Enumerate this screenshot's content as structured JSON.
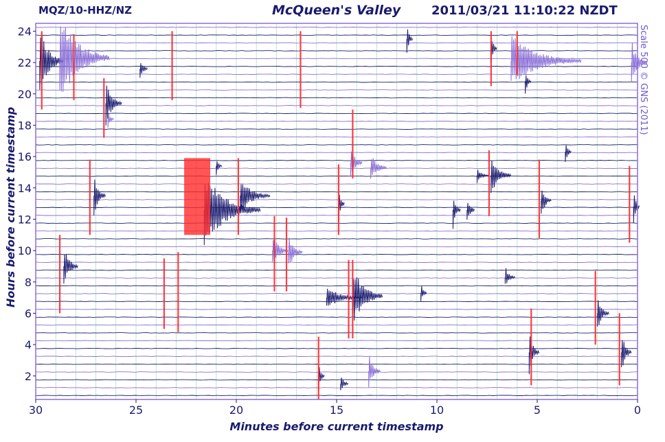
{
  "header": {
    "station": "MQZ/10-HHZ/NZ",
    "site": "McQueen's Valley",
    "timestamp": "2011/03/21 11:10:22 NZDT",
    "credit": "Scale 500 © GNS (2011)"
  },
  "chart_data": {
    "type": "heatmap",
    "xlabel": "Minutes before current timestamp",
    "ylabel": "Hours before current timestamp",
    "xlim": [
      30,
      0
    ],
    "ylim": [
      0.5,
      24.5
    ],
    "x_ticks": [
      "30",
      "25",
      "20",
      "15",
      "10",
      "5",
      "0"
    ],
    "y_ticks": [
      "2",
      "4",
      "6",
      "8",
      "10",
      "12",
      "14",
      "16",
      "18",
      "20",
      "22",
      "24"
    ],
    "trace_count": 48,
    "trace_colors": [
      "#1a1a6e",
      "#8a6fd6"
    ],
    "trigger_color": "#ff2a2a",
    "grid": true,
    "events": [
      {
        "minute": 29.8,
        "hour": 22.1,
        "amp": 4.5,
        "decay": 1.2,
        "color": "#1a1a6e"
      },
      {
        "minute": 28.8,
        "hour": 22.3,
        "amp": 6.0,
        "decay": 2.5,
        "color": "#8a6fd6"
      },
      {
        "minute": 26.5,
        "hour": 19.4,
        "amp": 3.0,
        "decay": 0.8,
        "color": "#1a1a6e"
      },
      {
        "minute": 24.8,
        "hour": 21.6,
        "amp": 1.5,
        "decay": 0.4,
        "color": "#1a1a6e"
      },
      {
        "minute": 21.6,
        "hour": 12.6,
        "amp": 5.0,
        "decay": 2.8,
        "color": "#1a1a6e"
      },
      {
        "minute": 19.8,
        "hour": 13.5,
        "amp": 2.5,
        "decay": 1.5,
        "color": "#1a1a6e"
      },
      {
        "minute": 27.1,
        "hour": 13.5,
        "amp": 3.0,
        "decay": 0.6,
        "color": "#1a1a6e"
      },
      {
        "minute": 28.6,
        "hour": 9.0,
        "amp": 3.0,
        "decay": 0.7,
        "color": "#1a1a6e"
      },
      {
        "minute": 18.2,
        "hour": 10.0,
        "amp": 2.5,
        "decay": 0.8,
        "color": "#8a6fd6"
      },
      {
        "minute": 17.4,
        "hour": 9.9,
        "amp": 2.5,
        "decay": 0.7,
        "color": "#8a6fd6"
      },
      {
        "minute": 15.5,
        "hour": 7.0,
        "amp": 1.5,
        "decay": 1.8,
        "color": "#1a1a6e"
      },
      {
        "minute": 14.2,
        "hour": 7.1,
        "amp": 4.0,
        "decay": 1.5,
        "color": "#1a1a6e"
      },
      {
        "minute": 14.3,
        "hour": 15.6,
        "amp": 2.5,
        "decay": 0.6,
        "color": "#8a6fd6"
      },
      {
        "minute": 13.3,
        "hour": 15.3,
        "amp": 2.0,
        "decay": 0.8,
        "color": "#8a6fd6"
      },
      {
        "minute": 14.9,
        "hour": 13.0,
        "amp": 2.5,
        "decay": 0.3,
        "color": "#1a1a6e"
      },
      {
        "minute": 15.9,
        "hour": 2.0,
        "amp": 2.0,
        "decay": 0.3,
        "color": "#1a1a6e"
      },
      {
        "minute": 14.8,
        "hour": 1.5,
        "amp": 1.5,
        "decay": 0.4,
        "color": "#1a1a6e"
      },
      {
        "minute": 13.4,
        "hour": 2.3,
        "amp": 2.5,
        "decay": 0.6,
        "color": "#8a6fd6"
      },
      {
        "minute": 7.3,
        "hour": 14.8,
        "amp": 2.5,
        "decay": 1.0,
        "color": "#1a1a6e"
      },
      {
        "minute": 8.0,
        "hour": 14.8,
        "amp": 1.0,
        "decay": 0.6,
        "color": "#1a1a6e"
      },
      {
        "minute": 9.2,
        "hour": 12.6,
        "amp": 2.5,
        "decay": 0.4,
        "color": "#1a1a6e"
      },
      {
        "minute": 8.5,
        "hour": 12.6,
        "amp": 2.0,
        "decay": 0.4,
        "color": "#1a1a6e"
      },
      {
        "minute": 4.8,
        "hour": 13.2,
        "amp": 2.5,
        "decay": 0.5,
        "color": "#1a1a6e"
      },
      {
        "minute": 0.2,
        "hour": 12.8,
        "amp": 3.0,
        "decay": 0.3,
        "color": "#1a1a6e"
      },
      {
        "minute": 5.4,
        "hour": 3.5,
        "amp": 3.0,
        "decay": 0.5,
        "color": "#1a1a6e"
      },
      {
        "minute": 2.0,
        "hour": 6.0,
        "amp": 2.5,
        "decay": 0.6,
        "color": "#1a1a6e"
      },
      {
        "minute": 0.8,
        "hour": 3.5,
        "amp": 3.0,
        "decay": 0.5,
        "color": "#1a1a6e"
      },
      {
        "minute": 6.3,
        "hour": 22.1,
        "amp": 3.5,
        "decay": 3.5,
        "color": "#8a6fd6"
      },
      {
        "minute": 0.3,
        "hour": 22.0,
        "amp": 3.0,
        "decay": 0.8,
        "color": "#8a6fd6"
      },
      {
        "minute": 7.3,
        "hour": 22.9,
        "amp": 2.0,
        "decay": 0.3,
        "color": "#1a1a6e"
      },
      {
        "minute": 11.5,
        "hour": 23.5,
        "amp": 2.0,
        "decay": 0.3,
        "color": "#1a1a6e"
      },
      {
        "minute": 5.6,
        "hour": 20.8,
        "amp": 1.8,
        "decay": 0.3,
        "color": "#1a1a6e"
      },
      {
        "minute": 3.6,
        "hour": 16.3,
        "amp": 2.0,
        "decay": 0.3,
        "color": "#1a1a6e"
      },
      {
        "minute": 6.6,
        "hour": 8.3,
        "amp": 1.5,
        "decay": 0.5,
        "color": "#1a1a6e"
      },
      {
        "minute": 26.4,
        "hour": 18.4,
        "amp": 1.2,
        "decay": 0.3,
        "color": "#8a6fd6"
      },
      {
        "minute": 21.0,
        "hour": 15.4,
        "amp": 1.2,
        "decay": 0.3,
        "color": "#1a1a6e"
      },
      {
        "minute": 10.8,
        "hour": 7.3,
        "amp": 1.5,
        "decay": 0.3,
        "color": "#1a1a6e"
      }
    ],
    "triggers": [
      {
        "minute": 29.7,
        "hour_from": 19.0,
        "hour_to": 24.0
      },
      {
        "minute": 28.1,
        "hour_from": 19.6,
        "hour_to": 23.8
      },
      {
        "minute": 26.6,
        "hour_from": 17.2,
        "hour_to": 21.0
      },
      {
        "minute": 23.2,
        "hour_from": 19.6,
        "hour_to": 24.0
      },
      {
        "minute": 16.8,
        "hour_from": 19.1,
        "hour_to": 24.0
      },
      {
        "minute": 7.3,
        "hour_from": 20.5,
        "hour_to": 24.0
      },
      {
        "minute": 6.0,
        "hour_from": 21.2,
        "hour_to": 24.0
      },
      {
        "minute": 27.3,
        "hour_from": 11.0,
        "hour_to": 15.8
      },
      {
        "minute": 19.9,
        "hour_from": 11.0,
        "hour_to": 15.9
      },
      {
        "minute": 28.8,
        "hour_from": 6.0,
        "hour_to": 11.0
      },
      {
        "minute": 23.6,
        "hour_from": 5.0,
        "hour_to": 9.5
      },
      {
        "minute": 22.9,
        "hour_from": 4.8,
        "hour_to": 9.9
      },
      {
        "minute": 18.1,
        "hour_from": 7.4,
        "hour_to": 12.2
      },
      {
        "minute": 17.5,
        "hour_from": 7.4,
        "hour_to": 12.1
      },
      {
        "minute": 14.9,
        "hour_from": 11.0,
        "hour_to": 15.5
      },
      {
        "minute": 14.4,
        "hour_from": 4.4,
        "hour_to": 9.4
      },
      {
        "minute": 14.2,
        "hour_from": 4.4,
        "hour_to": 9.4
      },
      {
        "minute": 14.2,
        "hour_from": 14.6,
        "hour_to": 19.0
      },
      {
        "minute": 15.9,
        "hour_from": 0.5,
        "hour_to": 4.5
      },
      {
        "minute": 7.4,
        "hour_from": 12.2,
        "hour_to": 16.4
      },
      {
        "minute": 4.9,
        "hour_from": 10.8,
        "hour_to": 15.8
      },
      {
        "minute": 0.4,
        "hour_from": 10.5,
        "hour_to": 15.4
      },
      {
        "minute": 5.3,
        "hour_from": 1.4,
        "hour_to": 6.3
      },
      {
        "minute": 2.1,
        "hour_from": 4.0,
        "hour_to": 8.7
      },
      {
        "minute": 0.9,
        "hour_from": 1.4,
        "hour_to": 6.0
      }
    ],
    "trigger_boxes": [
      {
        "minute_from": 22.6,
        "minute_to": 21.3,
        "hour_from": 11.0,
        "hour_to": 15.9
      }
    ]
  }
}
